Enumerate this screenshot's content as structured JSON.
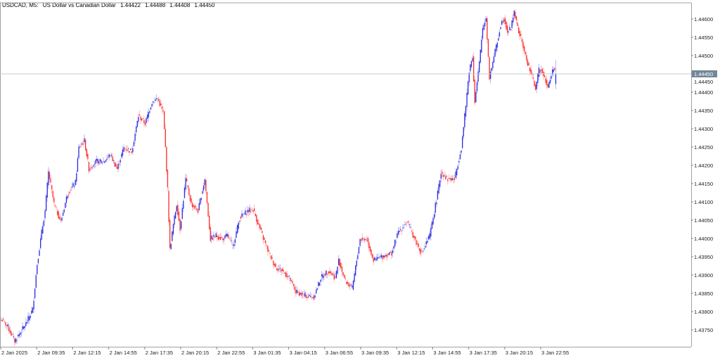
{
  "header": {
    "symbol": "USDCAD, M5:",
    "description": "US Dollar vs Canadian Dollar",
    "open": "1.44422",
    "high": "1.44488",
    "low": "1.44408",
    "close": "1.44450"
  },
  "colors": {
    "bull": "#2a2ae0",
    "bear": "#ff2a2a",
    "grid_border": "#a0a0a0",
    "price_line": "#c4ccd4",
    "price_label_bg": "#748698"
  },
  "chart_data": {
    "type": "candlestick",
    "timeframe": "M5",
    "ylim": [
      1.4372,
      1.44625
    ],
    "y_ticks": [
      "1.44600",
      "1.44550",
      "1.44500",
      "1.44450",
      "1.44400",
      "1.44350",
      "1.44300",
      "1.44250",
      "1.44200",
      "1.44150",
      "1.44100",
      "1.44050",
      "1.44000",
      "1.43950",
      "1.43900",
      "1.43850",
      "1.43800",
      "1.43750"
    ],
    "x_ticks": [
      "2 Jan 2025",
      "2 Jan 09:35",
      "2 Jan 12:15",
      "2 Jan 14:55",
      "2 Jan 17:35",
      "2 Jan 20:15",
      "2 Jan 22:55",
      "3 Jan 01:35",
      "3 Jan 04:15",
      "3 Jan 06:55",
      "3 Jan 09:35",
      "3 Jan 12:15",
      "3 Jan 14:55",
      "3 Jan 17:35",
      "3 Jan 20:15",
      "3 Jan 22:55"
    ],
    "current_price": "1.44450",
    "bars_total": 494,
    "close_path": [
      [
        0,
        1.43777
      ],
      [
        1,
        1.43777
      ],
      [
        6,
        1.43758
      ],
      [
        12,
        1.43719
      ],
      [
        22,
        1.43767
      ],
      [
        28,
        1.43806
      ],
      [
        32,
        1.43931
      ],
      [
        36,
        1.44017
      ],
      [
        39,
        1.44075
      ],
      [
        42,
        1.44181
      ],
      [
        47,
        1.44094
      ],
      [
        53,
        1.44046
      ],
      [
        59,
        1.44123
      ],
      [
        66,
        1.44152
      ],
      [
        69,
        1.44248
      ],
      [
        74,
        1.44267
      ],
      [
        78,
        1.4419
      ],
      [
        84,
        1.4421
      ],
      [
        91,
        1.4421
      ],
      [
        97,
        1.44229
      ],
      [
        103,
        1.4419
      ],
      [
        109,
        1.44248
      ],
      [
        116,
        1.44238
      ],
      [
        122,
        1.44335
      ],
      [
        128,
        1.44315
      ],
      [
        134,
        1.44373
      ],
      [
        139,
        1.44383
      ],
      [
        144,
        1.44344
      ],
      [
        146,
        1.44248
      ],
      [
        148,
        1.44133
      ],
      [
        150,
        1.43969
      ],
      [
        153,
        1.44037
      ],
      [
        156,
        1.44094
      ],
      [
        159,
        1.44027
      ],
      [
        164,
        1.44162
      ],
      [
        169,
        1.44094
      ],
      [
        175,
        1.44075
      ],
      [
        181,
        1.44162
      ],
      [
        186,
        1.43998
      ],
      [
        191,
        1.44008
      ],
      [
        197,
        1.43998
      ],
      [
        201,
        1.44008
      ],
      [
        206,
        1.43979
      ],
      [
        212,
        1.44056
      ],
      [
        219,
        1.44075
      ],
      [
        224,
        1.44079
      ],
      [
        231,
        1.44017
      ],
      [
        238,
        1.4396
      ],
      [
        244,
        1.43921
      ],
      [
        250,
        1.43912
      ],
      [
        256,
        1.43892
      ],
      [
        262,
        1.43854
      ],
      [
        269,
        1.43844
      ],
      [
        278,
        1.4384
      ],
      [
        284,
        1.43892
      ],
      [
        291,
        1.43912
      ],
      [
        297,
        1.43892
      ],
      [
        300,
        1.4394
      ],
      [
        306,
        1.43883
      ],
      [
        312,
        1.43863
      ],
      [
        319,
        1.43998
      ],
      [
        325,
        1.43998
      ],
      [
        331,
        1.4394
      ],
      [
        338,
        1.4395
      ],
      [
        347,
        1.4396
      ],
      [
        353,
        1.44017
      ],
      [
        361,
        1.44046
      ],
      [
        369,
        1.43988
      ],
      [
        374,
        1.4396
      ],
      [
        381,
        1.44008
      ],
      [
        388,
        1.44123
      ],
      [
        391,
        1.44181
      ],
      [
        397,
        1.44162
      ],
      [
        403,
        1.44162
      ],
      [
        409,
        1.44248
      ],
      [
        413,
        1.44363
      ],
      [
        416,
        1.4446
      ],
      [
        419,
        1.44498
      ],
      [
        421,
        1.44373
      ],
      [
        425,
        1.44479
      ],
      [
        428,
        1.44575
      ],
      [
        431,
        1.44604
      ],
      [
        434,
        1.4444
      ],
      [
        438,
        1.44498
      ],
      [
        441,
        1.44537
      ],
      [
        444,
        1.44585
      ],
      [
        447,
        1.44604
      ],
      [
        450,
        1.44565
      ],
      [
        453,
        1.44575
      ],
      [
        456,
        1.44623
      ],
      [
        459,
        1.44575
      ],
      [
        463,
        1.44537
      ],
      [
        466,
        1.44498
      ],
      [
        469,
        1.44469
      ],
      [
        472,
        1.4444
      ],
      [
        475,
        1.44412
      ],
      [
        478,
        1.4446
      ],
      [
        481,
        1.4446
      ],
      [
        486,
        1.44412
      ],
      [
        491,
        1.44469
      ],
      [
        493,
        1.4445
      ]
    ]
  }
}
